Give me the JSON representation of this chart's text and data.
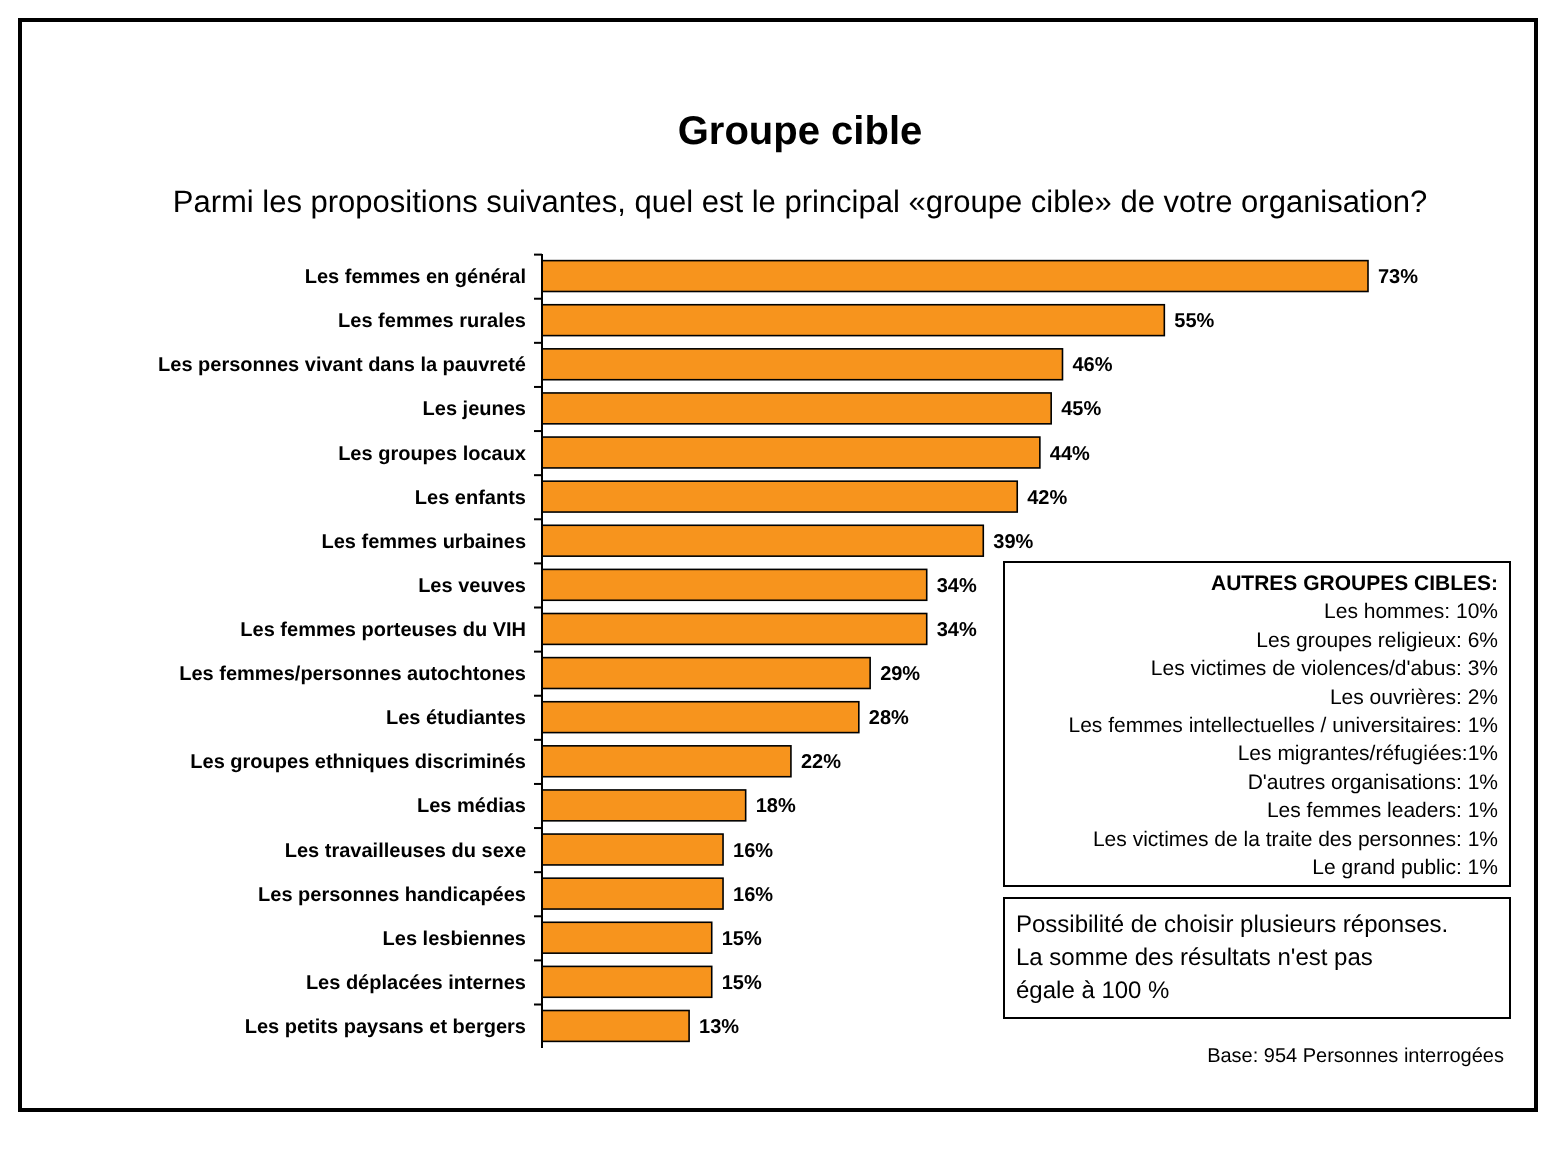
{
  "chart_data": {
    "type": "bar",
    "orientation": "horizontal",
    "title": "Groupe cible",
    "subtitle": "Parmi les propositions suivantes, quel est le principal «groupe cible» de votre organisation?",
    "categories": [
      "Les femmes en général",
      "Les femmes rurales",
      "Les personnes vivant dans la pauvreté",
      "Les jeunes",
      "Les groupes locaux",
      "Les enfants",
      "Les femmes urbaines",
      "Les veuves",
      "Les femmes porteuses du VIH",
      "Les femmes/personnes autochtones",
      "Les étudiantes",
      "Les groupes ethniques discriminés",
      "Les médias",
      "Les travailleuses du sexe",
      "Les personnes handicapées",
      "Les lesbiennes",
      "Les déplacées internes",
      "Les petits paysans et bergers"
    ],
    "values": [
      73,
      55,
      46,
      45,
      44,
      42,
      39,
      34,
      34,
      29,
      28,
      22,
      18,
      16,
      16,
      15,
      15,
      13
    ],
    "value_labels": [
      "73%",
      "55%",
      "46%",
      "45%",
      "44%",
      "42%",
      "39%",
      "34%",
      "34%",
      "29%",
      "28%",
      "22%",
      "18%",
      "16%",
      "16%",
      "15%",
      "15%",
      "13%"
    ],
    "color": "#f7941d",
    "annotations": [
      "AUTRES GROUPES CIBLES:",
      "Les hommes: 10%",
      "Les groupes religieux: 6%",
      "Les victimes de violences/d'abus: 3%",
      "Les ouvrières: 2%",
      "Les femmes intellectuelles / universitaires: 1%",
      "Les migrantes/réfugiées:1%",
      "D'autres organisations: 1%",
      "Les femmes leaders: 1%",
      "Les victimes de la traite des personnes: 1%",
      "Le grand public: 1%",
      "Possibilité de choisir plusieurs réponses. La somme des résultats n'est pas égale à 100 %",
      "Base: 954 Personnes interrogées"
    ]
  }
}
